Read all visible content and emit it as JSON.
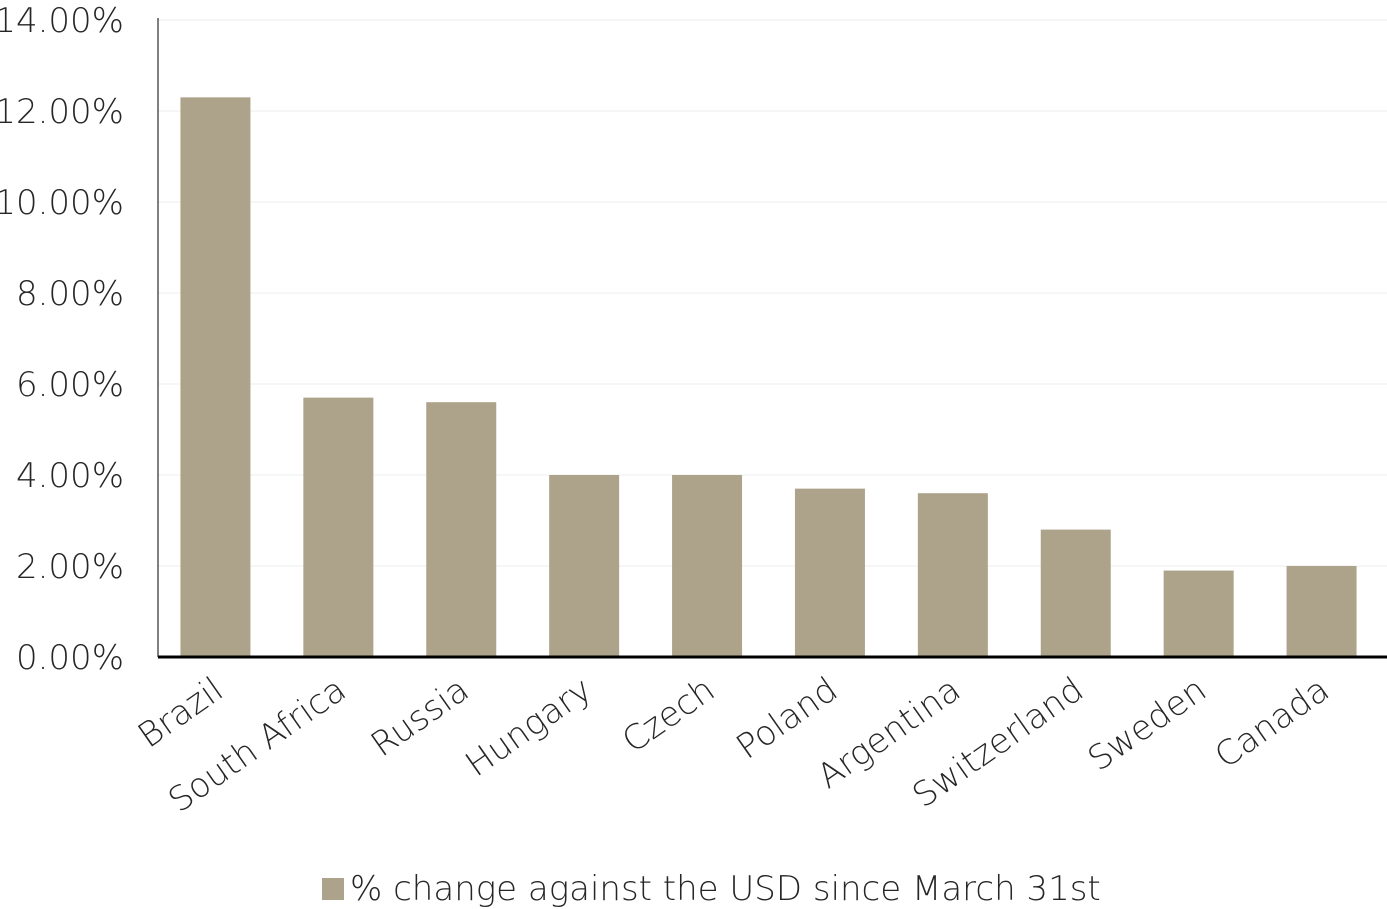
{
  "chart_data": {
    "type": "bar",
    "categories": [
      "Brazil",
      "South Africa",
      "Russia",
      "Hungary",
      "Czech",
      "Poland",
      "Argentina",
      "Switzerland",
      "Sweden",
      "Canada"
    ],
    "series": [
      {
        "name": "% change against the USD since March 31st",
        "values": [
          12.3,
          5.7,
          5.6,
          4.0,
          4.0,
          3.7,
          3.6,
          2.8,
          1.9,
          2.0
        ],
        "color": "#ada38a"
      }
    ],
    "yticks": [
      "0.00%",
      "2.00%",
      "4.00%",
      "6.00%",
      "8.00%",
      "10.00%",
      "12.00%",
      "14.00%"
    ],
    "ylim": [
      0,
      14
    ],
    "ystep": 2,
    "grid": true,
    "legend_position": "bottom",
    "axis_color": "#000000",
    "grid_color": "#ededed"
  }
}
